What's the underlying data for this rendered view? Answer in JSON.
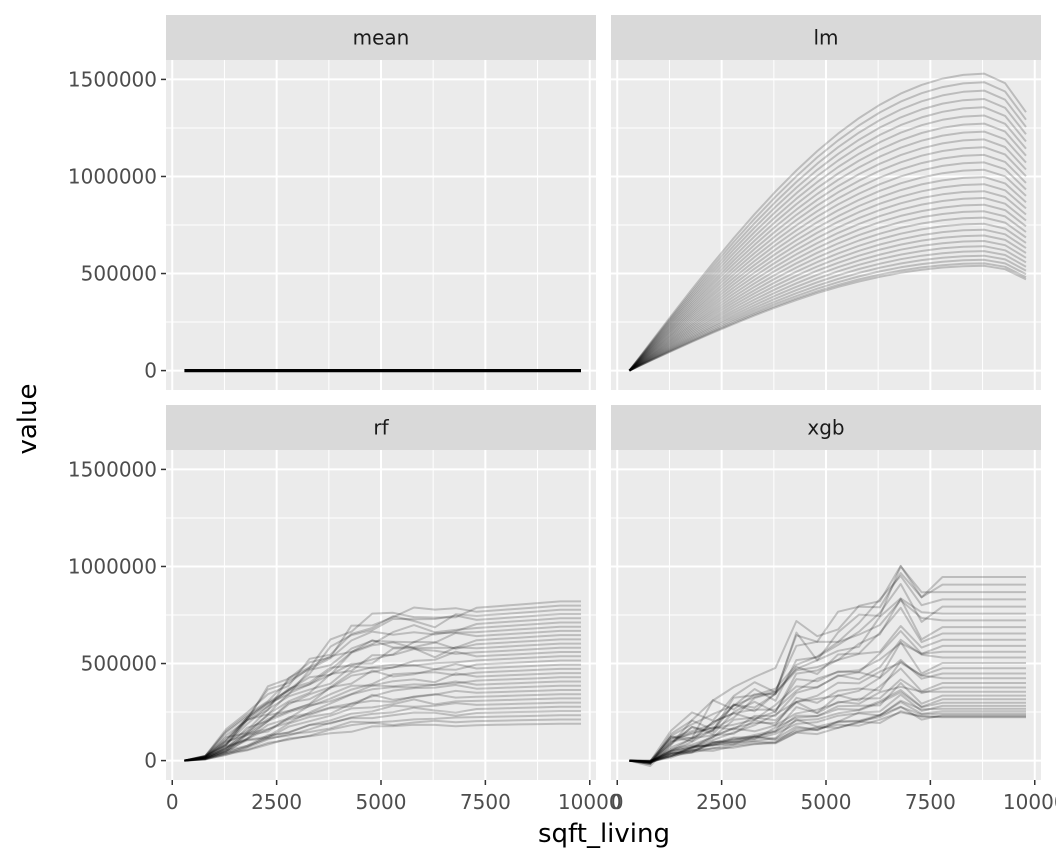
{
  "chart_data": {
    "type": "line",
    "xlabel": "sqft_living",
    "ylabel": "value",
    "xlim": [
      -150,
      10150
    ],
    "ylim": [
      -100000,
      1600000
    ],
    "x_ticks": [
      0,
      2500,
      5000,
      7500,
      10000
    ],
    "x_tick_labels": [
      "0",
      "2500",
      "5000",
      "7500",
      "10000"
    ],
    "y_ticks": [
      0,
      500000,
      1000000,
      1500000
    ],
    "y_tick_labels": [
      "0",
      "500000",
      "1000000",
      "1500000"
    ],
    "x": [
      290,
      790,
      1290,
      1790,
      2290,
      2790,
      3290,
      3790,
      4290,
      4790,
      5290,
      5790,
      6290,
      6790,
      7290,
      7790,
      8290,
      8790,
      9290,
      9790
    ],
    "line_color": "#000000",
    "panels": [
      {
        "name": "mean",
        "label": "mean",
        "kind": "flat",
        "count": 1,
        "opacity": 1.0,
        "stroke_width": 3.2
      },
      {
        "name": "lm",
        "label": "lm",
        "kind": "lm",
        "count": 30,
        "opacity": 0.2,
        "peak_min": 540000,
        "peak_max": 1530000
      },
      {
        "name": "rf",
        "label": "rf",
        "kind": "rf",
        "count": 30,
        "opacity": 0.2,
        "plateau_min": 190000,
        "plateau_max": 820000,
        "shape": [
          0,
          0.03,
          0.15,
          0.3,
          0.42,
          0.54,
          0.64,
          0.72,
          0.82,
          0.88,
          0.91,
          0.93,
          0.94,
          0.95,
          0.96,
          0.97,
          0.98,
          0.99,
          1.0,
          1.0
        ]
      },
      {
        "name": "xgb",
        "label": "xgb",
        "kind": "xgb",
        "count": 30,
        "opacity": 0.2,
        "level_min": 260000,
        "level_max": 1100000,
        "shape": [
          0,
          -0.02,
          0.12,
          0.18,
          0.25,
          0.32,
          0.37,
          0.4,
          0.6,
          0.58,
          0.68,
          0.72,
          0.8,
          0.98,
          0.82,
          0.86,
          0.86,
          0.86,
          0.86,
          0.86
        ]
      }
    ]
  }
}
